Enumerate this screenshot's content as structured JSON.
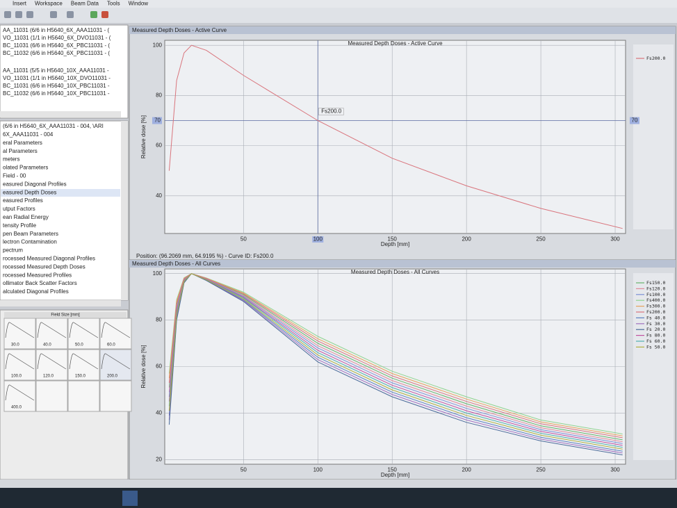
{
  "menu": [
    "Insert",
    "Workspace",
    "Beam Data",
    "Tools",
    "Window"
  ],
  "beam_list": [
    "AA_11031 (6/6 in H5640_6X_AAA11031 - (",
    "VO_11031 (1/1 in H5640_6X_DVO11031 - (",
    "BC_11031 (6/6 in H5640_6X_PBC11031 - (",
    "BC_11032 (6/6 in H5640_6X_PBC11031 - (",
    "AA_11031 (5/5 in H5640_10X_AAA11031 -",
    "VO_11031 (1/1 in H5640_10X_DVO11031 -",
    "BC_11031 (6/6 in H5640_10X_PBC11031 -",
    "BC_11032 (6/6 in H5640_10X_PBC11031 -"
  ],
  "tree": [
    "(6/6 in H5640_6X_AAA11031 - 004, \\ARI",
    "6X_AAA11031 - 004",
    "eral Parameters",
    "al Parameters",
    "meters",
    "olated Parameters",
    "Field - 00",
    "easured Diagonal Profiles",
    "easured Depth Doses",
    "easured Profiles",
    "utput Factors",
    "ean Radial Energy",
    "tensity Profile",
    "pen Beam Parameters",
    "lectron Contamination",
    "pectrum",
    "rocessed Measured Diagonal Profiles",
    "rocessed Measured Depth Doses",
    "rocessed Measured Profiles",
    "ollimator Back Scatter Factors",
    "alculated Diagonal Profiles"
  ],
  "thumbnails": {
    "title": "Field Size [mm]",
    "labels": [
      "30.0",
      "40.0",
      "50.0",
      "60.0",
      "100.0",
      "120.0",
      "150.0",
      "200.0",
      "400.0"
    ]
  },
  "windows": [
    "Measured Depth Doses - Active Curve",
    "Measured Depth Doses - All Curves"
  ],
  "position": "Position: (96.2069 mm, 64.9195 %) - Curve ID: Fs200.0",
  "chart_data": [
    {
      "type": "line",
      "title": "Measured Depth Doses - Active Curve",
      "x_label": "Depth [mm]",
      "y_label": "Relative dose [%]",
      "x": [
        0,
        5,
        10,
        15,
        25,
        50,
        100,
        150,
        200,
        250,
        305
      ],
      "series": [
        {
          "name": "Fs200.0",
          "color": "#d9747c",
          "values": [
            50,
            86,
            97,
            100,
            98,
            88,
            70,
            55,
            44,
            35,
            27
          ]
        }
      ],
      "xlim": [
        -3,
        307
      ],
      "ylim": [
        25,
        102
      ],
      "xticks": [
        50,
        100,
        150,
        200,
        250,
        300
      ],
      "yticks": [
        40,
        60,
        80,
        100
      ],
      "grid": true,
      "crosshair": {
        "x": 100,
        "y": 70,
        "label": "Fs200.0"
      }
    },
    {
      "type": "line",
      "title": "Measured Depth Doses - All Curves",
      "x_label": "Depth [mm]",
      "y_label": "Relative dose [%]",
      "x": [
        0,
        5,
        10,
        15,
        25,
        50,
        100,
        150,
        200,
        250,
        305
      ],
      "series": [
        {
          "name": "Fs150.0",
          "color": "#66b36b",
          "values": [
            51,
            86.4,
            97.6,
            100,
            97.8,
            90.9,
            70,
            55,
            44,
            34.5,
            28.5
          ]
        },
        {
          "name": "Fs120.0",
          "color": "#e08a9a",
          "values": [
            49,
            85.6,
            97.4,
            100,
            97.7,
            90.5,
            69,
            54,
            43,
            33.7,
            27.7
          ]
        },
        {
          "name": "Fs100.0",
          "color": "#7a8fd6",
          "values": [
            47,
            84.8,
            97.2,
            100,
            97.6,
            90.2,
            68,
            53,
            42,
            32.9,
            26.9
          ]
        },
        {
          "name": "Fs400.0",
          "color": "#8fd48f",
          "values": [
            57,
            88.8,
            98.2,
            100,
            98.1,
            92,
            73,
            58,
            47,
            37,
            31
          ]
        },
        {
          "name": "Fs300.0",
          "color": "#e6a35c",
          "values": [
            55,
            88,
            98,
            100,
            98,
            91.6,
            72,
            57,
            46,
            36.2,
            30.2
          ]
        },
        {
          "name": "Fs200.0",
          "color": "#d9747c",
          "values": [
            53,
            87.2,
            97.8,
            100,
            97.9,
            91.3,
            71,
            56,
            45,
            35.4,
            29.4
          ]
        },
        {
          "name": "Fs 40.0",
          "color": "#5a7fc0",
          "values": [
            39,
            81.6,
            96.4,
            100,
            97.2,
            88.7,
            64,
            49,
            38,
            29.6,
            23.6
          ]
        },
        {
          "name": "Fs 30.0",
          "color": "#a070c0",
          "values": [
            37,
            80.8,
            96.2,
            100,
            97.1,
            88.4,
            63,
            48,
            37,
            28.8,
            22.8
          ]
        },
        {
          "name": "Fs 20.0",
          "color": "#4a6a9a",
          "values": [
            35,
            80,
            96,
            100,
            97,
            88,
            62,
            47,
            36,
            28,
            22
          ]
        },
        {
          "name": "Fs 80.0",
          "color": "#c050a0",
          "values": [
            45,
            84,
            97,
            100,
            97.5,
            89.8,
            67,
            52,
            41,
            32.1,
            26.1
          ]
        },
        {
          "name": "Fs 60.0",
          "color": "#50b0b0",
          "values": [
            43,
            83.2,
            96.8,
            100,
            97.4,
            89.5,
            66,
            51,
            40,
            31.3,
            25.3
          ]
        },
        {
          "name": "Fs 50.0",
          "color": "#b0b040",
          "values": [
            41,
            82.4,
            96.6,
            100,
            97.3,
            89.1,
            65,
            50,
            39,
            30.5,
            24.5
          ]
        }
      ],
      "xlim": [
        -3,
        307
      ],
      "ylim": [
        18,
        102
      ],
      "xticks": [
        50,
        100,
        150,
        200,
        250,
        300
      ],
      "yticks": [
        20,
        40,
        60,
        80,
        100
      ],
      "grid": true
    }
  ]
}
